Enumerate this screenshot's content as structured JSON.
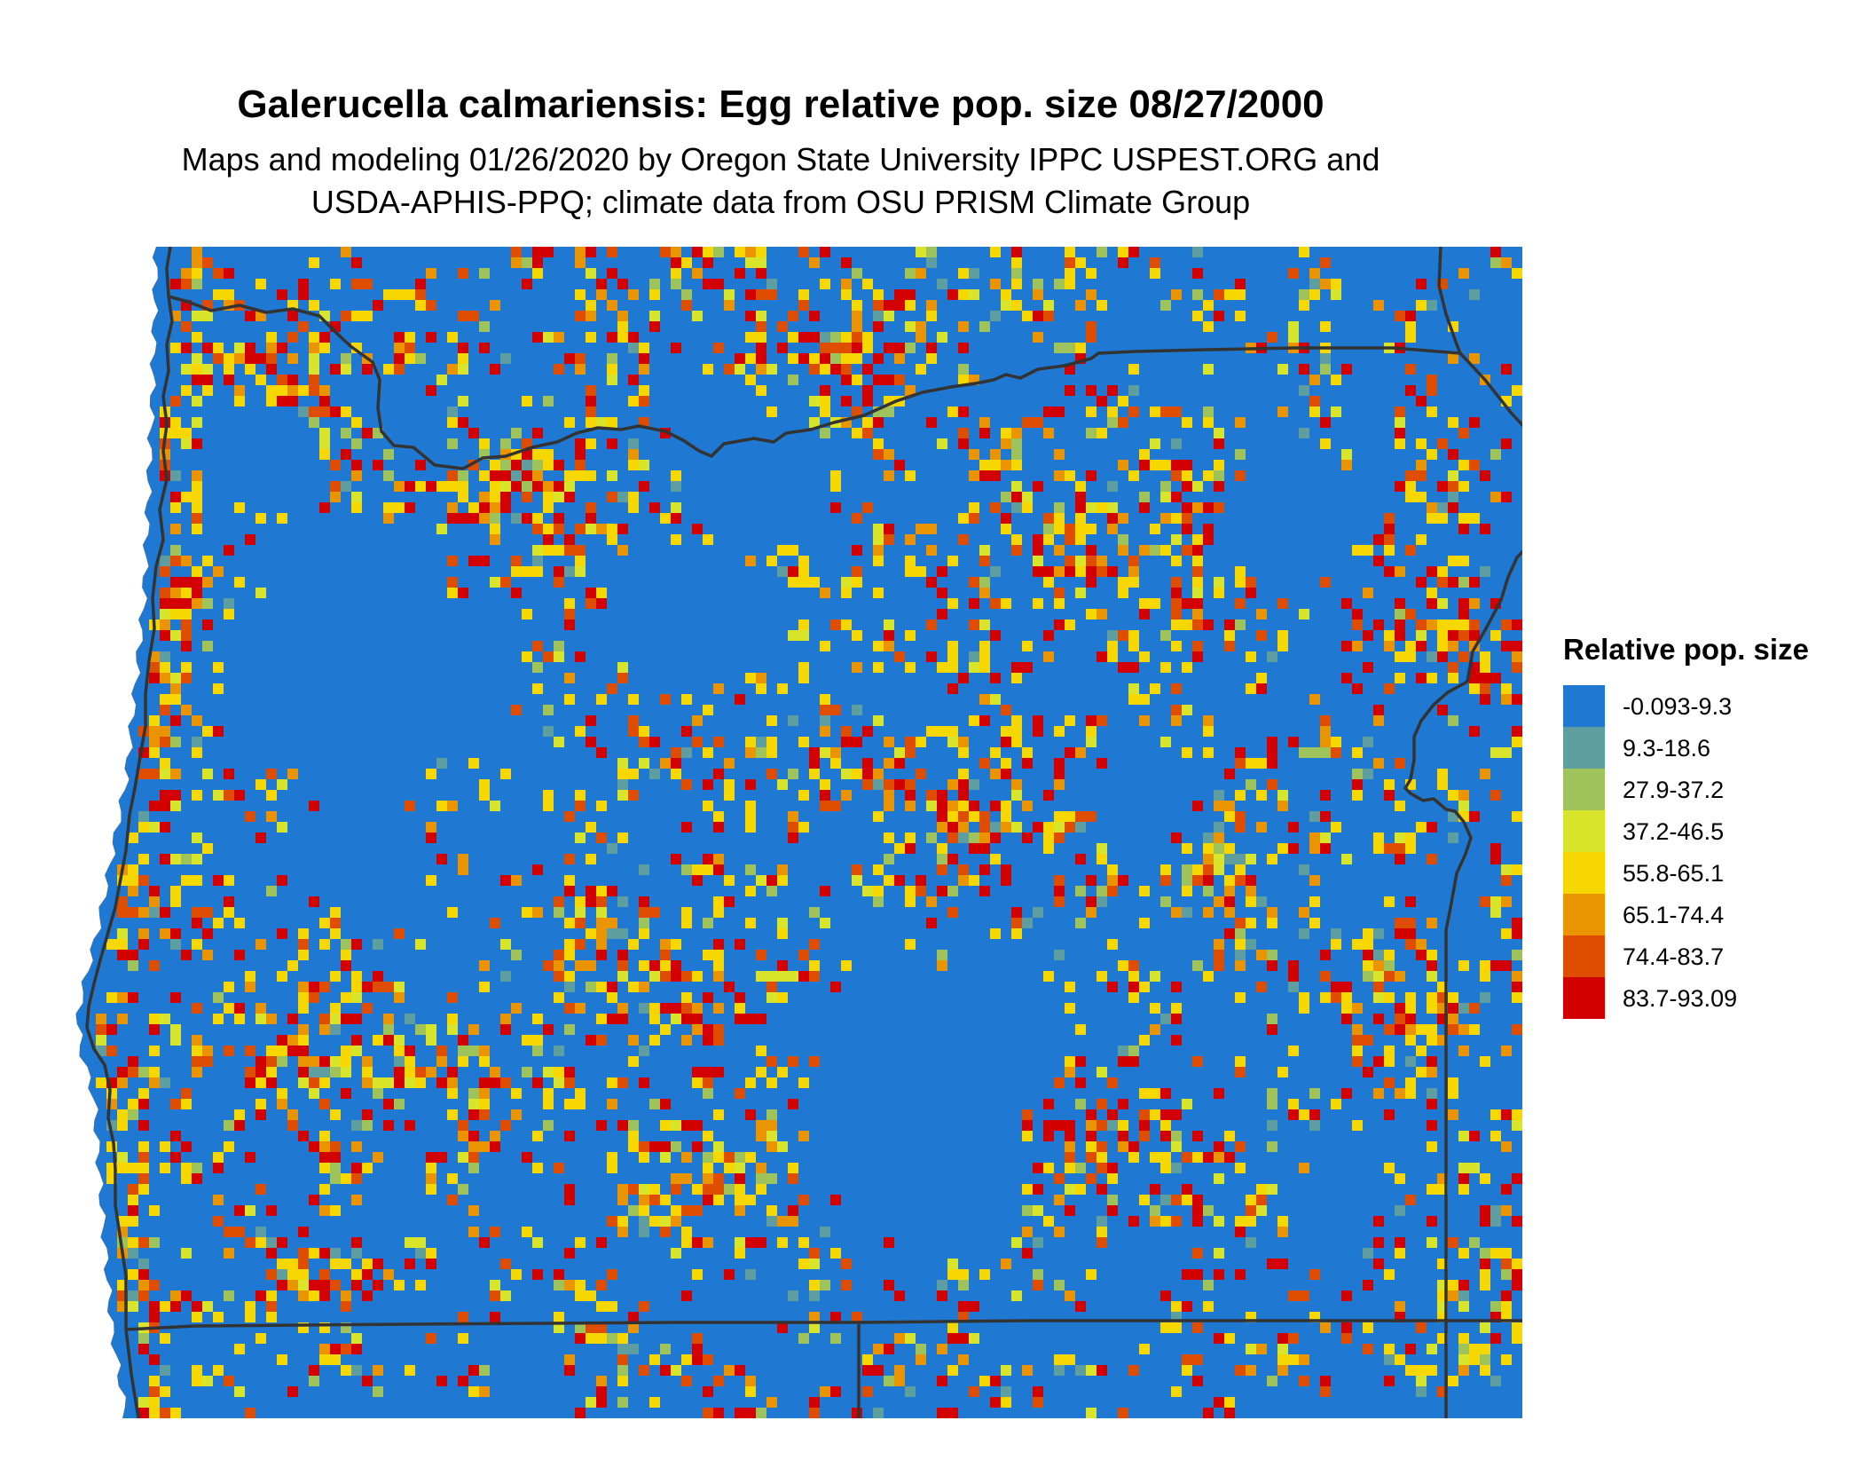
{
  "title": "Galerucella calmariensis: Egg relative pop. size 08/27/2000",
  "subtitle_line1": "Maps and modeling 01/26/2020 by Oregon State University IPPC USPEST.ORG and",
  "subtitle_line2": "USDA-APHIS-PPQ; climate data from OSU PRISM Climate Group",
  "legend": {
    "title": "Relative pop. size",
    "items": [
      {
        "label": "-0.093-9.3",
        "color": "#1f78d1"
      },
      {
        "label": "9.3-18.6",
        "color": "#5f9ea0"
      },
      {
        "label": "27.9-37.2",
        "color": "#9ec35a"
      },
      {
        "label": "37.2-46.5",
        "color": "#d9e52a"
      },
      {
        "label": "55.8-65.1",
        "color": "#f6d800"
      },
      {
        "label": "65.1-74.4",
        "color": "#ea9400"
      },
      {
        "label": "74.4-83.7",
        "color": "#de4d00"
      },
      {
        "label": "83.7-93.09",
        "color": "#d20000"
      }
    ]
  },
  "map_colors": {
    "background": "#1f78d1",
    "border_lines": "#333333"
  }
}
